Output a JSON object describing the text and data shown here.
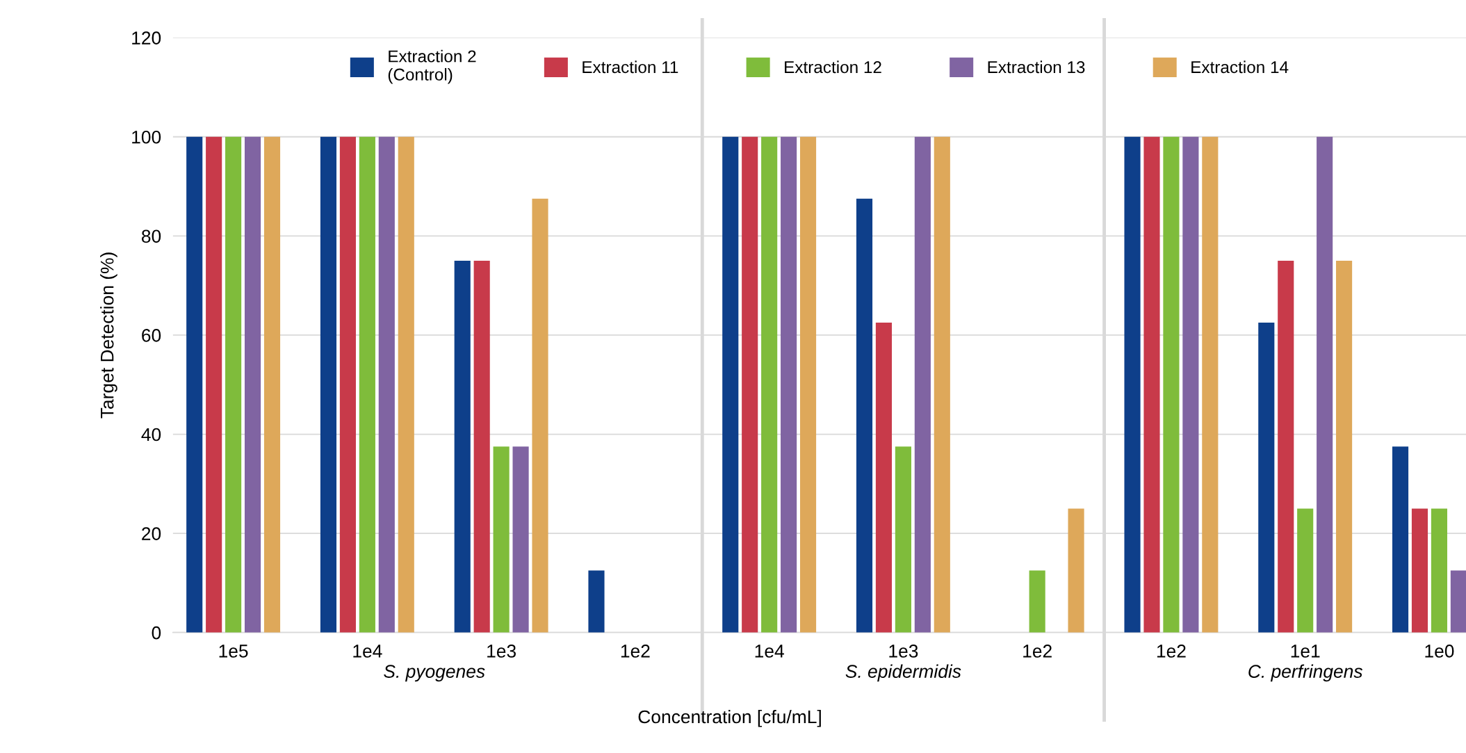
{
  "chart_data": {
    "type": "bar",
    "ylabel": "Target Detection (%)",
    "xlabel": "Concentration [cfu/mL]",
    "categories": [
      "1e5",
      "1e4",
      "1e3",
      "1e2",
      "1e4",
      "1e3",
      "1e2",
      "1e2",
      "1e1",
      "1e0"
    ],
    "series": [
      {
        "name": "Extraction 2\n(Control)",
        "color": "#0e3f8a",
        "values": [
          100,
          100,
          75,
          12.5,
          100,
          87.5,
          0,
          100,
          62.5,
          37.5
        ]
      },
      {
        "name": "Extraction 11",
        "color": "#c83a4a",
        "values": [
          100,
          100,
          75,
          0,
          100,
          62.5,
          0,
          100,
          75,
          25
        ]
      },
      {
        "name": "Extraction 12",
        "color": "#7fbc3b",
        "values": [
          100,
          100,
          37.5,
          0,
          100,
          37.5,
          12.5,
          100,
          25,
          25
        ]
      },
      {
        "name": "Extraction 13",
        "color": "#8064a2",
        "values": [
          100,
          100,
          37.5,
          0,
          100,
          100,
          0,
          100,
          100,
          12.5
        ]
      },
      {
        "name": "Extraction 14",
        "color": "#dea85a",
        "values": [
          100,
          100,
          87.5,
          0,
          100,
          100,
          25,
          100,
          75,
          null
        ]
      }
    ],
    "ylim": [
      0,
      120
    ],
    "yticks": [
      0,
      20,
      40,
      60,
      80,
      100,
      120
    ],
    "grid": "y",
    "legend": "top",
    "annotations": [
      "S. pyogenes",
      "S. epidermidis",
      "C. perfringens"
    ]
  }
}
